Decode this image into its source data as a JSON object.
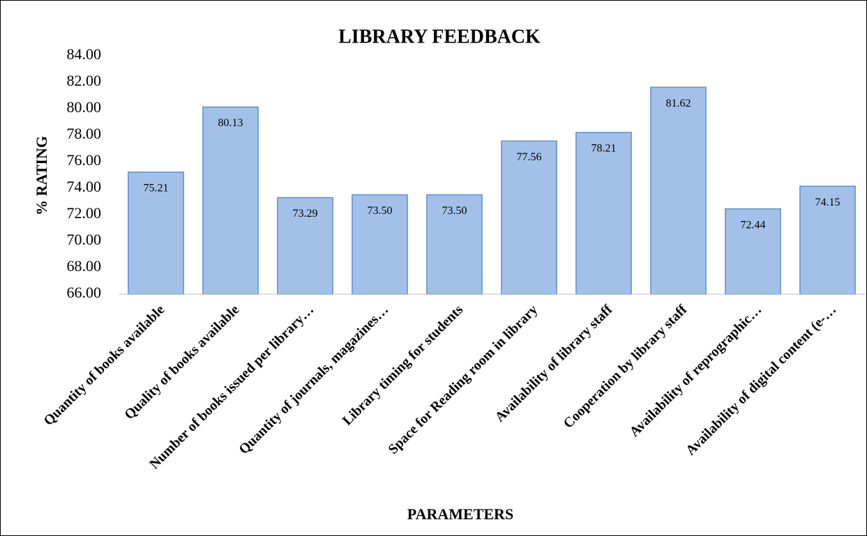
{
  "chart_data": {
    "type": "bar",
    "title": "LIBRARY FEEDBACK",
    "y_label": "% RATING",
    "x_label": "PARAMETERS",
    "categories": [
      "Quantity of books available",
      "Quality of books available",
      "Number of books issued per library…",
      "Quantity of journals, magazines…",
      "Library timing for students",
      "Space for Reading room in library",
      "Availability of library staff",
      "Cooperation by library staff",
      "Availability of reprographic…",
      "Availability of digital content (e-…"
    ],
    "values": [
      75.21,
      80.13,
      73.29,
      73.5,
      73.5,
      77.56,
      78.21,
      81.62,
      72.44,
      74.15
    ],
    "value_labels": [
      "75.21",
      "80.13",
      "73.29",
      "73.50",
      "73.50",
      "77.56",
      "78.21",
      "81.62",
      "72.44",
      "74.15"
    ],
    "color": "#a3c1e8",
    "ylim": [
      66,
      84
    ],
    "yticks": [
      {
        "value": 66,
        "label": "66.00"
      },
      {
        "value": 68,
        "label": "68.00"
      },
      {
        "value": 70,
        "label": "70.00"
      },
      {
        "value": 72,
        "label": "72.00"
      },
      {
        "value": 74,
        "label": "74.00"
      },
      {
        "value": 76,
        "label": "76.00"
      },
      {
        "value": 78,
        "label": "78.00"
      },
      {
        "value": 80,
        "label": "80.00"
      },
      {
        "value": 82,
        "label": "82.00"
      },
      {
        "value": 84,
        "label": "84.00"
      }
    ],
    "grid": false
  }
}
